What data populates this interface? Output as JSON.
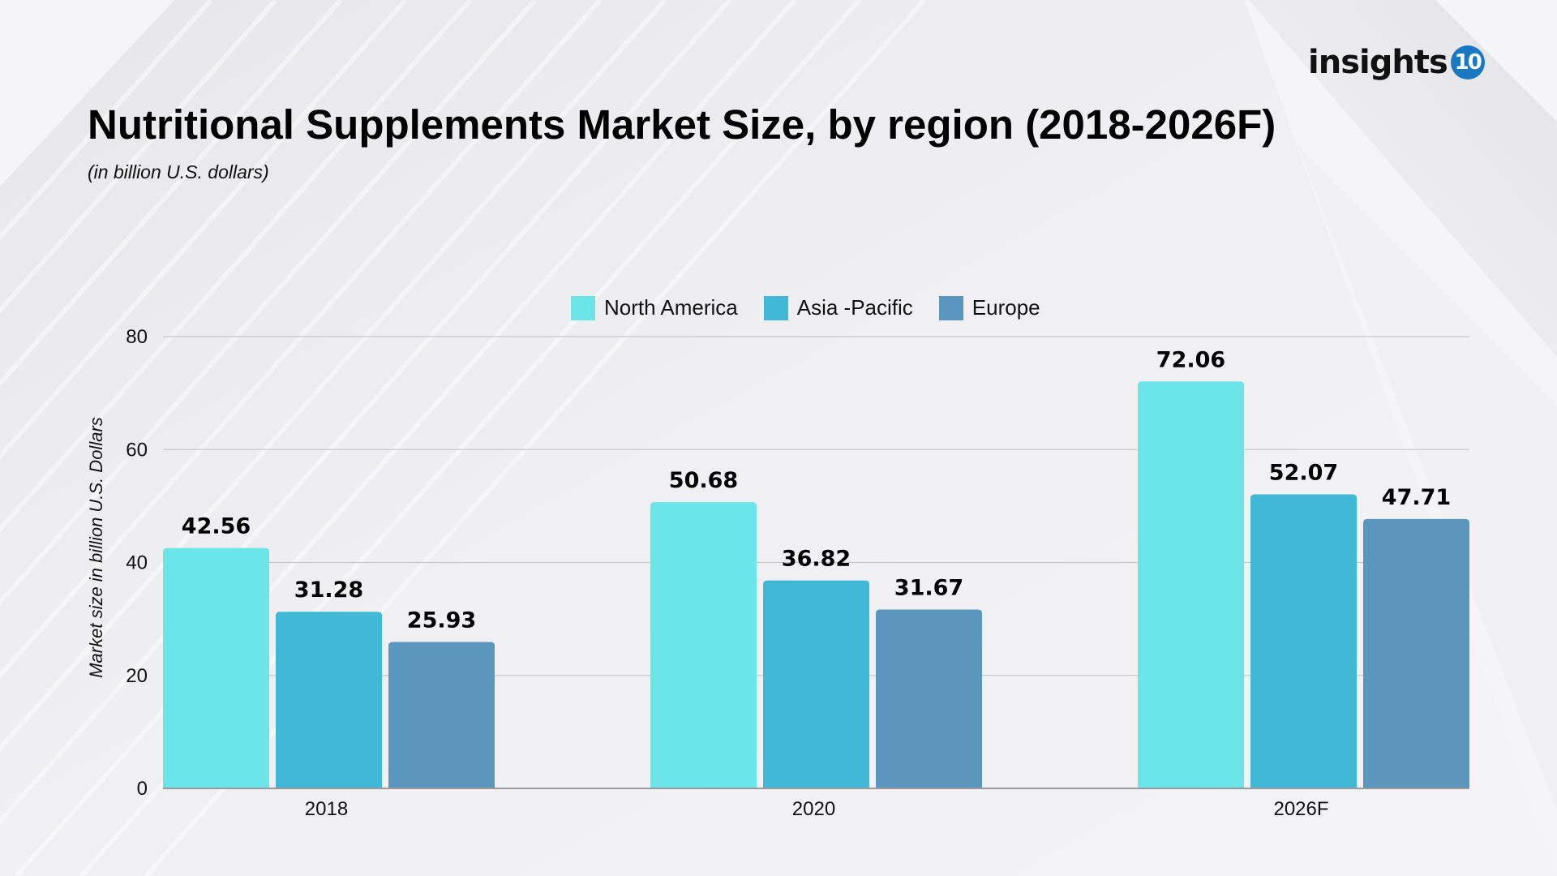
{
  "logo": {
    "text": "insights",
    "badge": "10",
    "badge_color": "#1a78c2"
  },
  "header": {
    "title": "Nutritional Supplements Market Size, by region (2018-2026F)",
    "subtitle": "(in billion U.S. dollars)"
  },
  "chart_data": {
    "type": "bar",
    "title": "Nutritional Supplements Market Size, by region (2018-2026F)",
    "subtitle": "(in billion U.S. dollars)",
    "xlabel": "",
    "ylabel": "Market size in billion U.S. Dollars",
    "categories": [
      "2018",
      "2020",
      "2026F"
    ],
    "series": [
      {
        "name": "North America",
        "color": "#6ce5e8",
        "values": [
          42.56,
          50.68,
          72.06
        ]
      },
      {
        "name": "Asia -Pacific",
        "color": "#41b8d5",
        "values": [
          31.28,
          36.82,
          52.07
        ]
      },
      {
        "name": "Europe",
        "color": "#5a96bd",
        "values": [
          25.93,
          31.67,
          47.71
        ]
      }
    ],
    "ylim": [
      0,
      80
    ],
    "yticks": [
      0,
      20,
      40,
      60,
      80
    ],
    "grid": true,
    "legend_position": "top-center",
    "data_labels": true
  }
}
